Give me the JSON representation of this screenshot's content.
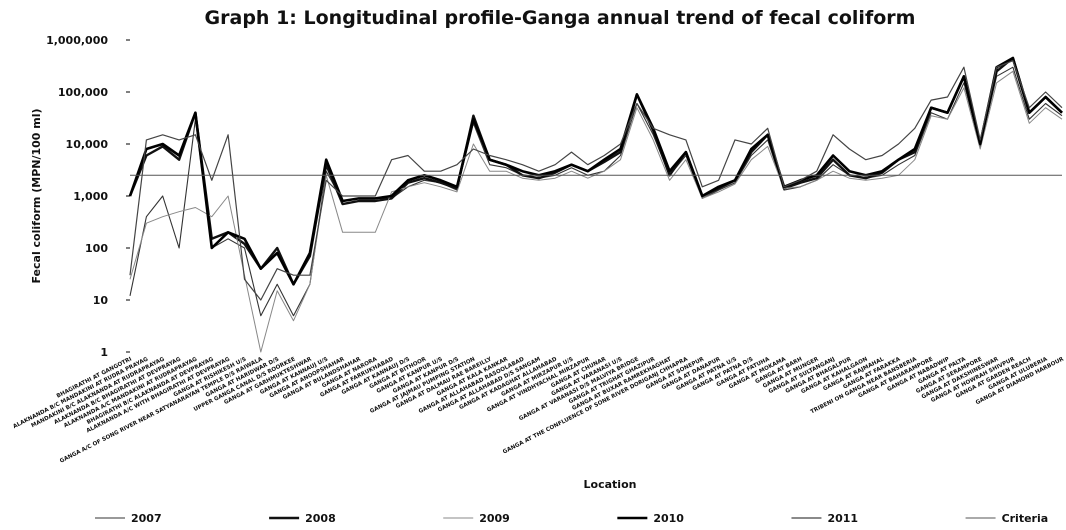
{
  "chart_data": {
    "type": "line",
    "title": "Graph 1: Longitudinal profile-Ganga annual trend of fecal coliform",
    "y_label": "Fecal coliform (MPN/100 ml)",
    "x_label": "Location",
    "log_scale": true,
    "legend": "bottom",
    "ylim": [
      1,
      1000000
    ],
    "yticks": [
      {
        "value": 1000000,
        "label": "1,000,000"
      },
      {
        "value": 100000,
        "label": "100,000"
      },
      {
        "value": 10000,
        "label": "10,000"
      },
      {
        "value": 1000,
        "label": "1,000"
      },
      100,
      10,
      1
    ],
    "categories": [
      "BHAGIRATHI AT GANGOTRI",
      "ALAKNANDA B/C MANDAKINI AT RUDRA PRAYAG",
      "MANDAKINI B/C ALAKNANDA AT RUDRAPRAYAG",
      "ALAKNANDA B/C BHAGIRATHI AT DEVPRAYAG",
      "ALAKNANDA A/C MANDAKINI AT RUDRAPRAYAG",
      "BHAGIRATHI B/C ALAKNANDA AT DEVPRAYAG",
      "ALAKNANDA A/C WITH BHAGIRATHI AT DEVPRAYAG",
      "GANGA AT RISHIKESH U/S",
      "GANGA A/C OF SONG RIVER NEAR SATYANARAYAN TEMPLE D/S RAIWALA",
      "GANGA AT HARIDWAR D/S",
      "UPPER GANGA CANAL D/S ROORKEE",
      "GANGA AT GARHMUKTESHWAR",
      "GANGA AT KANNAUJ U/S",
      "GANGA AT ANOOPSHAHAR",
      "GANGA AT BULANDSHAHAR",
      "GANGA AT NARORA",
      "GANGA AT FARRUKHABAD",
      "GANGA AT KANNAUJ D/S",
      "GANGA AT BITHOOR",
      "GANGA AT KANPUR U/S",
      "GANGA AT KANPUR D/S",
      "GANGA AT JAJMAU PUMPING STATION",
      "GANGA AT DALMAU RAE BAREILLY",
      "GANGA AT KALA KANKAR",
      "GANGA AT ALLAHABAD RASOOLABAD",
      "GANGA AT ALLAHABAD D/S SANGAM",
      "GANGA AT KADAGHAT ALLAHABAD",
      "GANGA AT MIRZAPUR U/S",
      "GANGA AT VINDHYACHAL MIRZAPUR",
      "GANGA AT CHUNAR",
      "GANGA AT VARANASI U/S",
      "GANGA AT VARANASI D/S MALVIYA BRIDGE",
      "GANGA AT TRIGHAT GHAZIPUR",
      "GANGA AT BUXAR RAMREKHAGHAT",
      "GANGA AT THE CONFLUENCE OF SONE RIVER DORIGANJ CHHAPRA",
      "GANGA AT SONEPUR",
      "GANGA AT DANAPUR",
      "GANGA AT PATNA U/S",
      "GANGA AT PATNA D/S",
      "GANGA AT FATUHA",
      "GANGA AT MOKAMA",
      "GANGA AT BARH",
      "GANGA AT MUNGER",
      "GANGA AT SULTANGANJ",
      "GANGA AT BHAGALPUR",
      "GANGA AT KAHALGAON",
      "GANGA AT RAJMAHAL",
      "GANGA AT FARAKKA",
      "TRIBENI ON GANGA NEAR BANSBERIA",
      "GANGA AT BAHARAMPORE",
      "GANGA AT NABADWIP",
      "GANGA AT PALTA",
      "GANGA AT SERAMPORE",
      "GANGA AT DAKSHINESWAR",
      "GANGA AT HOWRAH SHIVPUR",
      "GANGA AT GARDEN REACH",
      "GANGA AT ULUBERIA",
      "GANGA AT DIAMOND HARBOUR"
    ],
    "series": [
      {
        "name": "2007",
        "color": "#333333",
        "width": 1.1,
        "values": [
          12,
          400,
          1000,
          100,
          30000,
          100,
          150,
          100,
          5,
          20,
          5,
          20,
          3000,
          800,
          900,
          900,
          900,
          1500,
          2000,
          1800,
          1300,
          25000,
          4000,
          3500,
          2500,
          2200,
          2500,
          3500,
          2500,
          3000,
          6000,
          60000,
          15000,
          2500,
          6000,
          900,
          1300,
          1800,
          6000,
          12000,
          1300,
          1500,
          2000,
          4000,
          2500,
          2200,
          2500,
          4000,
          6000,
          40000,
          30000,
          150000,
          9000,
          200000,
          300000,
          30000,
          60000,
          35000
        ]
      },
      {
        "name": "2008",
        "color": "#111111",
        "width": 2.4,
        "values": [
          1000,
          6000,
          9000,
          5000,
          40000,
          150,
          200,
          120,
          40,
          100,
          20,
          70,
          4000,
          700,
          800,
          800,
          900,
          1800,
          2200,
          1800,
          1400,
          35000,
          5000,
          4000,
          2500,
          2200,
          2800,
          4000,
          3000,
          4500,
          7000,
          90000,
          18000,
          2500,
          7000,
          1000,
          1400,
          2000,
          7000,
          15000,
          1400,
          1800,
          2200,
          5000,
          2500,
          2200,
          2800,
          5000,
          7000,
          50000,
          40000,
          200000,
          10000,
          250000,
          450000,
          40000,
          80000,
          40000
        ]
      },
      {
        "name": "2009",
        "color": "#888888",
        "width": 1,
        "values": [
          25,
          300,
          400,
          500,
          600,
          400,
          1000,
          30,
          1,
          15,
          4,
          20,
          2500,
          200,
          200,
          200,
          1200,
          1500,
          1800,
          1500,
          1200,
          10000,
          3000,
          3000,
          2200,
          2000,
          2200,
          3000,
          2200,
          3000,
          5000,
          50000,
          12000,
          2000,
          5000,
          900,
          1200,
          1700,
          5000,
          9000,
          1400,
          1500,
          2000,
          3000,
          2200,
          2000,
          2200,
          2500,
          5000,
          35000,
          30000,
          120000,
          8000,
          150000,
          250000,
          25000,
          50000,
          30000
        ]
      },
      {
        "name": "2010",
        "color": "#000000",
        "width": 2.6,
        "values": [
          1000,
          8000,
          10000,
          6000,
          40000,
          100,
          200,
          150,
          40,
          80,
          20,
          80,
          5000,
          800,
          900,
          900,
          1000,
          2000,
          2500,
          2000,
          1500,
          30000,
          5000,
          4000,
          3000,
          2500,
          3000,
          4000,
          3000,
          5000,
          8000,
          90000,
          20000,
          3000,
          7000,
          1000,
          1500,
          2000,
          8000,
          15000,
          1500,
          2000,
          2500,
          6000,
          3000,
          2500,
          3000,
          5000,
          8000,
          50000,
          40000,
          200000,
          10000,
          300000,
          450000,
          40000,
          80000,
          40000
        ]
      },
      {
        "name": "2011",
        "color": "#444444",
        "width": 1.2,
        "values": [
          30,
          12000,
          15000,
          12000,
          15000,
          2000,
          15000,
          25,
          10,
          40,
          30,
          30,
          2000,
          1000,
          1000,
          1000,
          5000,
          6000,
          3000,
          3000,
          4000,
          8000,
          6000,
          5000,
          4000,
          3000,
          4000,
          7000,
          4000,
          6000,
          10000,
          60000,
          20000,
          15000,
          12000,
          1500,
          2000,
          12000,
          10000,
          20000,
          1500,
          2000,
          3000,
          15000,
          8000,
          5000,
          6000,
          10000,
          20000,
          70000,
          80000,
          300000,
          12000,
          300000,
          400000,
          50000,
          100000,
          50000
        ]
      },
      {
        "name": "Criteria",
        "color": "#555555",
        "width": 1,
        "values": [
          2500,
          2500,
          2500,
          2500,
          2500,
          2500,
          2500,
          2500,
          2500,
          2500,
          2500,
          2500,
          2500,
          2500,
          2500,
          2500,
          2500,
          2500,
          2500,
          2500,
          2500,
          2500,
          2500,
          2500,
          2500,
          2500,
          2500,
          2500,
          2500,
          2500,
          2500,
          2500,
          2500,
          2500,
          2500,
          2500,
          2500,
          2500,
          2500,
          2500,
          2500,
          2500,
          2500,
          2500,
          2500,
          2500,
          2500,
          2500,
          2500,
          2500,
          2500,
          2500,
          2500,
          2500,
          2500,
          2500,
          2500,
          2500
        ]
      }
    ]
  }
}
